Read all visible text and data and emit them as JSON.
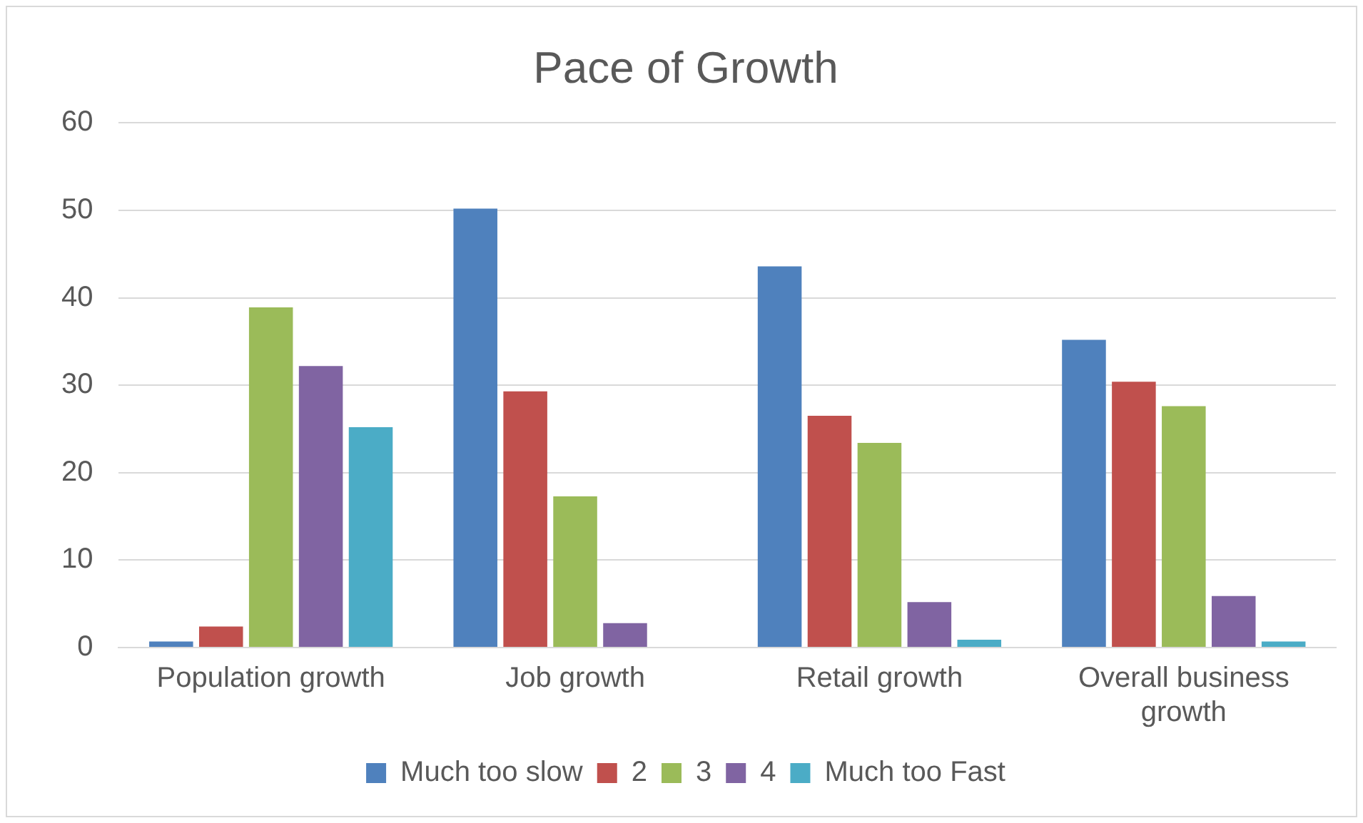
{
  "chart_data": {
    "type": "bar",
    "title": "Pace of Growth",
    "categories": [
      "Population growth",
      "Job growth",
      "Retail growth",
      "Overall business growth"
    ],
    "series": [
      {
        "name": "Much too slow",
        "color": "#4f81bd",
        "values": [
          0.7,
          50.2,
          43.6,
          35.2
        ]
      },
      {
        "name": "2",
        "color": "#c0504d",
        "values": [
          2.4,
          29.3,
          26.5,
          30.4
        ]
      },
      {
        "name": "3",
        "color": "#9bbb59",
        "values": [
          38.9,
          17.3,
          23.4,
          27.6
        ]
      },
      {
        "name": "4",
        "color": "#8064a2",
        "values": [
          32.2,
          2.8,
          5.2,
          5.9
        ]
      },
      {
        "name": "Much too Fast",
        "color": "#4bacc6",
        "values": [
          25.2,
          0,
          0.9,
          0.7
        ]
      }
    ],
    "ylim": [
      0,
      60
    ],
    "yticks": [
      0,
      10,
      20,
      30,
      40,
      50,
      60
    ],
    "grid": "y",
    "legend": "bottom"
  }
}
